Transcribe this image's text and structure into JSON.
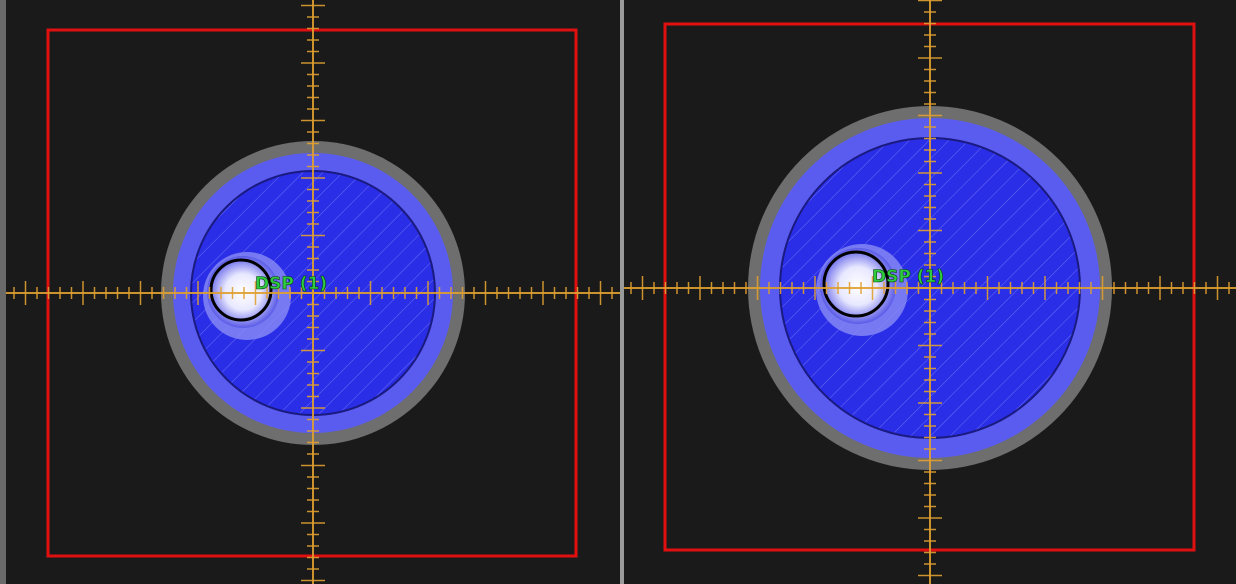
{
  "panels": [
    {
      "label": "DSP (1)"
    },
    {
      "label": "DSP (1)"
    }
  ]
}
